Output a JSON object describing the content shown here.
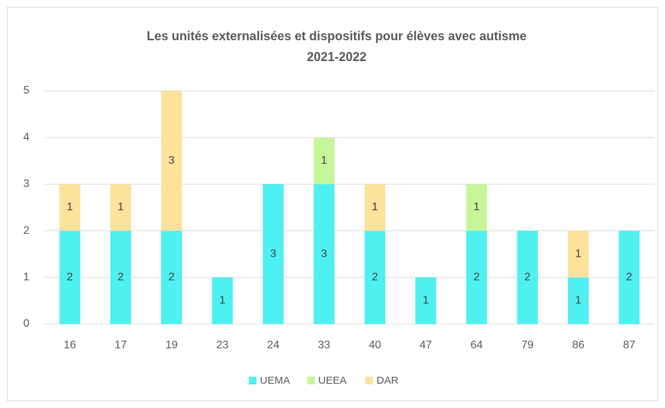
{
  "chart_data": {
    "type": "stacked_bar",
    "title": [
      "Les unités externalisées et dispositifs pour élèves avec autisme",
      "2021-2022"
    ],
    "categories": [
      "16",
      "17",
      "19",
      "23",
      "24",
      "33",
      "40",
      "47",
      "64",
      "79",
      "86",
      "87"
    ],
    "series": [
      {
        "name": "UEMA",
        "color": "#4ff0f0",
        "values": [
          2,
          2,
          2,
          1,
          3,
          3,
          2,
          1,
          2,
          2,
          1,
          2
        ]
      },
      {
        "name": "UEEA",
        "color": "#c6f59a",
        "values": [
          null,
          null,
          null,
          null,
          null,
          1,
          null,
          null,
          1,
          null,
          null,
          null
        ]
      },
      {
        "name": "DAR",
        "color": "#fde29c",
        "values": [
          1,
          1,
          3,
          null,
          null,
          null,
          1,
          null,
          null,
          null,
          1,
          null
        ]
      }
    ],
    "ylim": [
      0,
      5
    ],
    "yticks": [
      0,
      1,
      2,
      3,
      4,
      5
    ],
    "grid": true,
    "legend": "bottom"
  }
}
